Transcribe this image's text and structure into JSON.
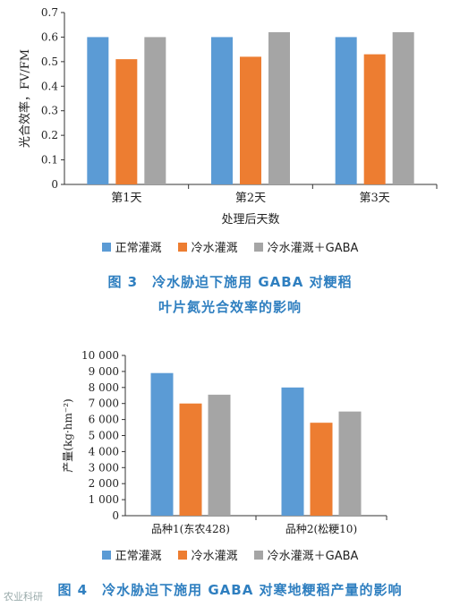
{
  "chart_data": [
    {
      "type": "bar",
      "ylabel": "光合效率，FV/FM",
      "xlabel": "处理后天数",
      "ylim": [
        0,
        0.7
      ],
      "yticks": [
        "0",
        "0.1",
        "0.2",
        "0.3",
        "0.4",
        "0.5",
        "0.6",
        "0.7"
      ],
      "categories": [
        "第1天",
        "第2天",
        "第3天"
      ],
      "series": [
        {
          "name": "正常灌溉",
          "color": "#5b9bd5",
          "values": [
            0.6,
            0.6,
            0.6
          ]
        },
        {
          "name": "冷水灌溉",
          "color": "#ed7d31",
          "values": [
            0.51,
            0.52,
            0.53
          ]
        },
        {
          "name": "冷水灌溉＋GABA",
          "color": "#a5a5a5",
          "values": [
            0.6,
            0.62,
            0.62
          ]
        }
      ],
      "grid": false,
      "legend": "bottom",
      "caption_line1": "图 3　冷水胁迫下施用 GABA 对粳稻",
      "caption_line2": "叶片氮光合效率的影响"
    },
    {
      "type": "bar",
      "ylabel": "产量(kg·hm⁻²)",
      "xlabel": "",
      "ylim": [
        0,
        10000
      ],
      "yticks": [
        "0",
        "1 000",
        "2 000",
        "3 000",
        "4 000",
        "5 000",
        "6 000",
        "7 000",
        "8 000",
        "9 000",
        "10 000"
      ],
      "categories": [
        "品种1(东农428)",
        "品种2(松粳10)"
      ],
      "series": [
        {
          "name": "正常灌溉",
          "color": "#5b9bd5",
          "values": [
            8900,
            8000
          ]
        },
        {
          "name": "冷水灌溉",
          "color": "#ed7d31",
          "values": [
            7000,
            5800
          ]
        },
        {
          "name": "冷水灌溉＋GABA",
          "color": "#a5a5a5",
          "values": [
            7550,
            6500
          ]
        }
      ],
      "grid": false,
      "legend": "bottom",
      "caption": "图 4　冷水胁迫下施用 GABA 对寒地粳稻产量的影响"
    }
  ],
  "watermark": "农业科研"
}
